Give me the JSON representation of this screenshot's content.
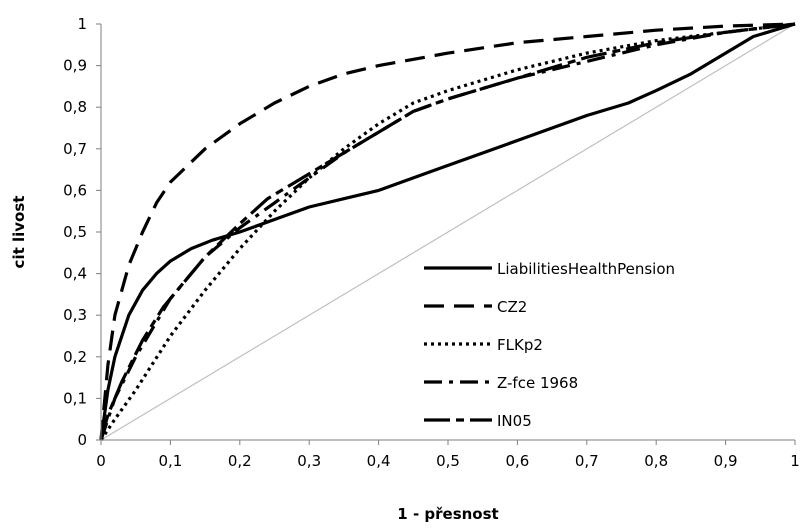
{
  "chart_data": {
    "type": "line",
    "xlabel": "1 - přesnost",
    "ylabel": "cit livost",
    "xlim": [
      0,
      1
    ],
    "ylim": [
      0,
      1
    ],
    "x_ticks": [
      "0",
      "0,1",
      "0,2",
      "0,3",
      "0,4",
      "0,5",
      "0,6",
      "0,7",
      "0,8",
      "0,9",
      "1"
    ],
    "y_ticks": [
      "0",
      "0,1",
      "0,2",
      "0,3",
      "0,4",
      "0,5",
      "0,6",
      "0,7",
      "0,8",
      "0,9",
      "1"
    ],
    "legend_position": "bottom-right",
    "grid": false,
    "reference_line": {
      "x": [
        0,
        1
      ],
      "y": [
        0,
        1
      ],
      "color": "#bfbfbf"
    },
    "series": [
      {
        "name": "LiabilitiesHealthPension",
        "dash": "solid",
        "x": [
          0,
          0.01,
          0.02,
          0.04,
          0.06,
          0.08,
          0.1,
          0.13,
          0.16,
          0.2,
          0.25,
          0.3,
          0.35,
          0.4,
          0.45,
          0.5,
          0.55,
          0.6,
          0.65,
          0.7,
          0.76,
          0.8,
          0.85,
          0.9,
          0.94,
          1.0
        ],
        "y": [
          0,
          0.12,
          0.2,
          0.3,
          0.36,
          0.4,
          0.43,
          0.46,
          0.48,
          0.5,
          0.53,
          0.56,
          0.58,
          0.6,
          0.63,
          0.66,
          0.69,
          0.72,
          0.75,
          0.78,
          0.81,
          0.84,
          0.88,
          0.93,
          0.97,
          1.0
        ]
      },
      {
        "name": "CZ2",
        "dash": "long-dash",
        "x": [
          0,
          0.01,
          0.02,
          0.04,
          0.06,
          0.08,
          0.1,
          0.15,
          0.2,
          0.25,
          0.3,
          0.35,
          0.4,
          0.5,
          0.6,
          0.7,
          0.8,
          0.9,
          1.0
        ],
        "y": [
          0,
          0.18,
          0.3,
          0.42,
          0.5,
          0.57,
          0.62,
          0.7,
          0.76,
          0.81,
          0.85,
          0.88,
          0.9,
          0.93,
          0.955,
          0.97,
          0.985,
          0.995,
          1.0
        ]
      },
      {
        "name": "FLKp2",
        "dash": "dotted",
        "x": [
          0,
          0.02,
          0.05,
          0.1,
          0.15,
          0.2,
          0.25,
          0.3,
          0.35,
          0.4,
          0.45,
          0.5,
          0.6,
          0.7,
          0.8,
          0.9,
          1.0
        ],
        "y": [
          0,
          0.05,
          0.12,
          0.25,
          0.36,
          0.46,
          0.55,
          0.63,
          0.7,
          0.76,
          0.81,
          0.84,
          0.89,
          0.93,
          0.96,
          0.98,
          1.0
        ]
      },
      {
        "name": "Z-fce 1968",
        "dash": "dash-dot",
        "x": [
          0,
          0.02,
          0.05,
          0.1,
          0.15,
          0.2,
          0.25,
          0.3,
          0.35,
          0.4,
          0.45,
          0.5,
          0.6,
          0.7,
          0.8,
          0.9,
          1.0
        ],
        "y": [
          0,
          0.1,
          0.2,
          0.34,
          0.44,
          0.51,
          0.57,
          0.63,
          0.69,
          0.74,
          0.79,
          0.82,
          0.87,
          0.91,
          0.95,
          0.98,
          1.0
        ]
      },
      {
        "name": "IN05",
        "dash": "long-dash-short",
        "x": [
          0,
          0.01,
          0.03,
          0.06,
          0.09,
          0.12,
          0.15,
          0.2,
          0.24,
          0.28,
          0.32,
          0.36,
          0.4,
          0.45,
          0.5,
          0.6,
          0.7,
          0.8,
          0.9,
          1.0
        ],
        "y": [
          0,
          0.06,
          0.14,
          0.24,
          0.32,
          0.38,
          0.44,
          0.52,
          0.58,
          0.62,
          0.66,
          0.7,
          0.74,
          0.79,
          0.82,
          0.87,
          0.92,
          0.955,
          0.98,
          1.0
        ]
      }
    ]
  }
}
